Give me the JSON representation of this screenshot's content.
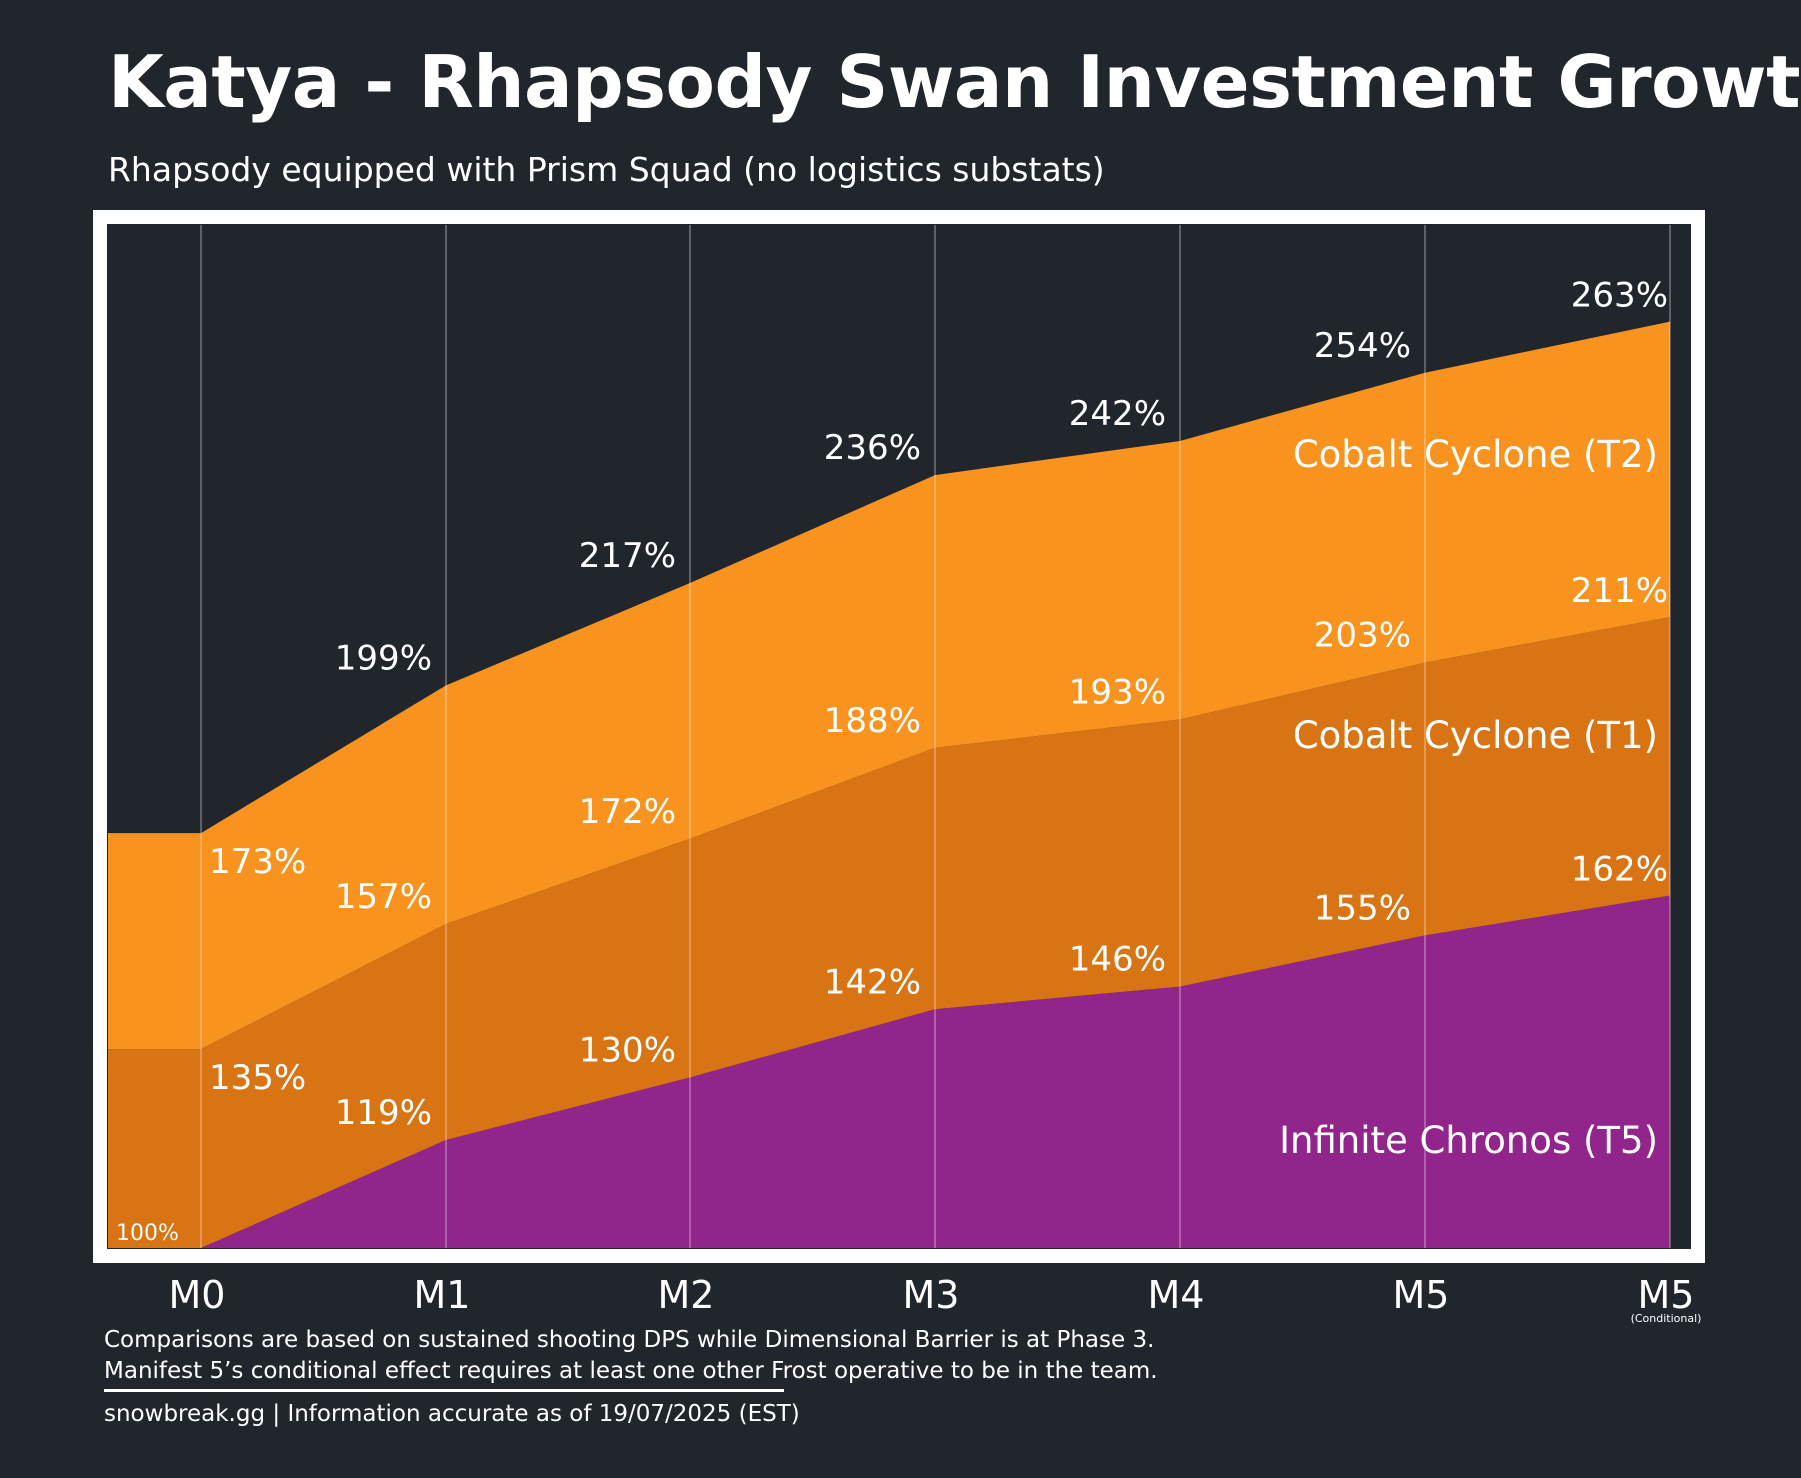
{
  "title": "Katya - Rhapsody Swan Investment Growth",
  "subtitle": "Rhapsody equipped with Prism Squad (no logistics substats)",
  "colors": {
    "background": "#21252c",
    "frame": "#ffffff",
    "t2": "#f7931e",
    "t1": "#d97415",
    "t5": "#92258c",
    "gridline": "rgba(255,255,255,0.28)"
  },
  "chart_data": {
    "type": "area",
    "categories": [
      "M0",
      "M1",
      "M2",
      "M3",
      "M4",
      "M5",
      "M5"
    ],
    "category_sublabels": [
      "",
      "",
      "",
      "",
      "",
      "",
      "(Conditional)"
    ],
    "ylim": [
      100,
      280
    ],
    "baseline_label": "100%",
    "series": [
      {
        "name": "Infinite Chronos (T5)",
        "values": [
          100,
          119,
          130,
          142,
          146,
          155,
          162
        ],
        "labels": [
          "",
          "119%",
          "130%",
          "142%",
          "146%",
          "155%",
          "162%"
        ]
      },
      {
        "name": "Cobalt Cyclone (T1)",
        "values": [
          135,
          157,
          172,
          188,
          193,
          203,
          211
        ],
        "labels": [
          "135%",
          "157%",
          "172%",
          "188%",
          "193%",
          "203%",
          "211%"
        ]
      },
      {
        "name": "Cobalt Cyclone (T2)",
        "values": [
          173,
          199,
          217,
          236,
          242,
          254,
          263
        ],
        "labels": [
          "173%",
          "199%",
          "217%",
          "236%",
          "242%",
          "254%",
          "263%"
        ]
      }
    ]
  },
  "footer": {
    "line1": "Comparisons are based on sustained shooting DPS while Dimensional Barrier is at Phase 3.",
    "line2": "Manifest 5’s conditional effect requires at least one other Frost operative to be in the team.",
    "line3": "snowbreak.gg | Information accurate as of 19/07/2025 (EST)"
  }
}
